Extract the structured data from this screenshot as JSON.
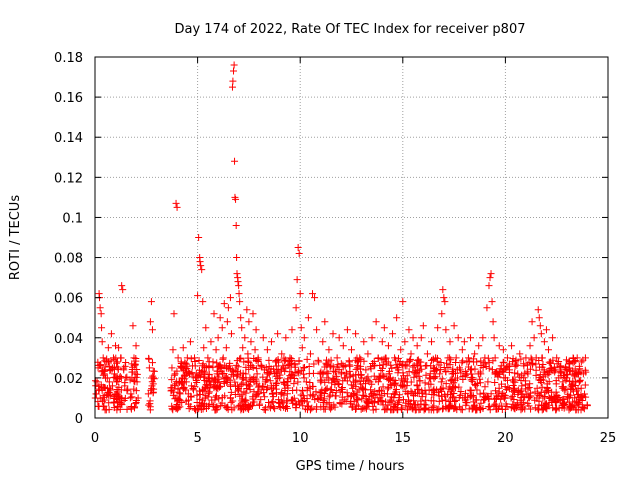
{
  "chart_data": {
    "type": "scatter",
    "title": "Day 174 of 2022, Rate Of TEC Index for receiver p807",
    "xlabel": "GPS time / hours",
    "ylabel": "ROTI / TECUs",
    "xlim": [
      0,
      25
    ],
    "ylim": [
      0,
      0.18
    ],
    "x_ticks": [
      "0",
      "5",
      "10",
      "15",
      "20",
      "25"
    ],
    "y_ticks": [
      "0",
      "0.02",
      "0.04",
      "0.06",
      "0.08",
      "0.1",
      "0.12",
      "0.14",
      "0.16",
      "0.18"
    ],
    "grid": true,
    "marker": "plus",
    "series_color": "#ff0000",
    "series": [
      {
        "points": [
          [
            0.05,
            0.012
          ],
          [
            0.1,
            0.018
          ],
          [
            0.15,
            0.025
          ],
          [
            0.2,
            0.062
          ],
          [
            0.22,
            0.06
          ],
          [
            0.25,
            0.055
          ],
          [
            0.3,
            0.052
          ],
          [
            0.32,
            0.045
          ],
          [
            0.35,
            0.038
          ],
          [
            0.4,
            0.03
          ],
          [
            0.45,
            0.022
          ],
          [
            0.5,
            0.015
          ],
          [
            0.55,
            0.028
          ],
          [
            0.6,
            0.02
          ],
          [
            0.65,
            0.035
          ],
          [
            0.7,
            0.018
          ],
          [
            0.75,
            0.024
          ],
          [
            0.8,
            0.042
          ],
          [
            0.85,
            0.016
          ],
          [
            0.9,
            0.03
          ],
          [
            0.95,
            0.022
          ],
          [
            1.0,
            0.036
          ],
          [
            1.05,
            0.018
          ],
          [
            1.1,
            0.028
          ],
          [
            1.15,
            0.035
          ],
          [
            1.2,
            0.02
          ],
          [
            1.25,
            0.03
          ],
          [
            1.3,
            0.066
          ],
          [
            1.35,
            0.064
          ],
          [
            1.4,
            0.024
          ],
          [
            1.45,
            0.016
          ],
          [
            1.5,
            0.02
          ],
          [
            1.75,
            0.012
          ],
          [
            1.8,
            0.02
          ],
          [
            1.85,
            0.046
          ],
          [
            1.9,
            0.03
          ],
          [
            1.95,
            0.022
          ],
          [
            2.0,
            0.036
          ],
          [
            2.05,
            0.018
          ],
          [
            2.1,
            0.01
          ],
          [
            2.6,
            0.012
          ],
          [
            2.65,
            0.025
          ],
          [
            2.7,
            0.048
          ],
          [
            2.75,
            0.058
          ],
          [
            2.8,
            0.044
          ],
          [
            2.85,
            0.02
          ],
          [
            3.7,
            0.015
          ],
          [
            3.75,
            0.025
          ],
          [
            3.8,
            0.034
          ],
          [
            3.85,
            0.052
          ],
          [
            3.9,
            0.022
          ],
          [
            3.95,
            0.107
          ],
          [
            4.0,
            0.105
          ],
          [
            4.05,
            0.03
          ],
          [
            4.1,
            0.018
          ],
          [
            4.15,
            0.012
          ],
          [
            4.2,
            0.028
          ],
          [
            4.25,
            0.02
          ],
          [
            4.3,
            0.035
          ],
          [
            4.35,
            0.015
          ],
          [
            4.4,
            0.025
          ],
          [
            4.45,
            0.018
          ],
          [
            4.5,
            0.03
          ],
          [
            4.55,
            0.012
          ],
          [
            4.6,
            0.022
          ],
          [
            4.65,
            0.038
          ],
          [
            4.7,
            0.016
          ],
          [
            4.75,
            0.026
          ],
          [
            4.8,
            0.014
          ],
          [
            4.85,
            0.03
          ],
          [
            4.9,
            0.02
          ],
          [
            5.0,
            0.061
          ],
          [
            5.05,
            0.09
          ],
          [
            5.1,
            0.08
          ],
          [
            5.12,
            0.078
          ],
          [
            5.15,
            0.076
          ],
          [
            5.2,
            0.074
          ],
          [
            5.25,
            0.058
          ],
          [
            5.3,
            0.035
          ],
          [
            5.35,
            0.022
          ],
          [
            5.4,
            0.045
          ],
          [
            5.45,
            0.018
          ],
          [
            5.5,
            0.03
          ],
          [
            5.55,
            0.026
          ],
          [
            5.6,
            0.015
          ],
          [
            5.65,
            0.038
          ],
          [
            5.7,
            0.02
          ],
          [
            5.75,
            0.028
          ],
          [
            5.8,
            0.052
          ],
          [
            5.85,
            0.016
          ],
          [
            5.9,
            0.034
          ],
          [
            5.95,
            0.022
          ],
          [
            6.0,
            0.04
          ],
          [
            6.05,
            0.018
          ],
          [
            6.1,
            0.05
          ],
          [
            6.15,
            0.025
          ],
          [
            6.2,
            0.045
          ],
          [
            6.25,
            0.03
          ],
          [
            6.3,
            0.057
          ],
          [
            6.35,
            0.02
          ],
          [
            6.4,
            0.035
          ],
          [
            6.45,
            0.048
          ],
          [
            6.5,
            0.055
          ],
          [
            6.55,
            0.026
          ],
          [
            6.6,
            0.06
          ],
          [
            6.65,
            0.042
          ],
          [
            6.7,
            0.165
          ],
          [
            6.72,
            0.168
          ],
          [
            6.75,
            0.173
          ],
          [
            6.78,
            0.176
          ],
          [
            6.8,
            0.128
          ],
          [
            6.82,
            0.11
          ],
          [
            6.85,
            0.109
          ],
          [
            6.88,
            0.096
          ],
          [
            6.9,
            0.08
          ],
          [
            6.92,
            0.072
          ],
          [
            6.95,
            0.07
          ],
          [
            6.97,
            0.068
          ],
          [
            7.0,
            0.066
          ],
          [
            7.02,
            0.062
          ],
          [
            7.05,
            0.058
          ],
          [
            7.1,
            0.05
          ],
          [
            7.15,
            0.045
          ],
          [
            7.2,
            0.035
          ],
          [
            7.25,
            0.028
          ],
          [
            7.3,
            0.04
          ],
          [
            7.35,
            0.022
          ],
          [
            7.4,
            0.054
          ],
          [
            7.45,
            0.032
          ],
          [
            7.5,
            0.048
          ],
          [
            7.55,
            0.02
          ],
          [
            7.6,
            0.038
          ],
          [
            7.65,
            0.026
          ],
          [
            7.7,
            0.052
          ],
          [
            7.75,
            0.018
          ],
          [
            7.8,
            0.034
          ],
          [
            7.85,
            0.044
          ],
          [
            7.9,
            0.022
          ],
          [
            7.95,
            0.03
          ],
          [
            8.0,
            0.016
          ],
          [
            8.1,
            0.026
          ],
          [
            8.2,
            0.04
          ],
          [
            8.3,
            0.018
          ],
          [
            8.4,
            0.034
          ],
          [
            8.5,
            0.022
          ],
          [
            8.6,
            0.038
          ],
          [
            8.7,
            0.015
          ],
          [
            8.8,
            0.028
          ],
          [
            8.9,
            0.042
          ],
          [
            9.0,
            0.02
          ],
          [
            9.1,
            0.032
          ],
          [
            9.2,
            0.025
          ],
          [
            9.3,
            0.04
          ],
          [
            9.4,
            0.018
          ],
          [
            9.5,
            0.03
          ],
          [
            9.6,
            0.044
          ],
          [
            9.8,
            0.055
          ],
          [
            9.85,
            0.069
          ],
          [
            9.9,
            0.085
          ],
          [
            9.95,
            0.082
          ],
          [
            10.0,
            0.062
          ],
          [
            10.05,
            0.045
          ],
          [
            10.1,
            0.035
          ],
          [
            10.15,
            0.025
          ],
          [
            10.2,
            0.04
          ],
          [
            10.3,
            0.018
          ],
          [
            10.4,
            0.05
          ],
          [
            10.5,
            0.032
          ],
          [
            10.6,
            0.062
          ],
          [
            10.7,
            0.06
          ],
          [
            10.8,
            0.044
          ],
          [
            10.9,
            0.028
          ],
          [
            11.0,
            0.022
          ],
          [
            11.1,
            0.038
          ],
          [
            11.2,
            0.048
          ],
          [
            11.3,
            0.02
          ],
          [
            11.4,
            0.034
          ],
          [
            11.5,
            0.026
          ],
          [
            11.6,
            0.042
          ],
          [
            11.7,
            0.018
          ],
          [
            11.8,
            0.03
          ],
          [
            11.9,
            0.04
          ],
          [
            12.0,
            0.022
          ],
          [
            12.1,
            0.036
          ],
          [
            12.2,
            0.02
          ],
          [
            12.3,
            0.044
          ],
          [
            12.4,
            0.028
          ],
          [
            12.5,
            0.034
          ],
          [
            12.6,
            0.018
          ],
          [
            12.7,
            0.042
          ],
          [
            12.8,
            0.025
          ],
          [
            12.9,
            0.03
          ],
          [
            13.0,
            0.02
          ],
          [
            13.1,
            0.038
          ],
          [
            13.2,
            0.024
          ],
          [
            13.3,
            0.032
          ],
          [
            13.4,
            0.018
          ],
          [
            13.5,
            0.04
          ],
          [
            13.6,
            0.026
          ],
          [
            13.7,
            0.048
          ],
          [
            13.8,
            0.03
          ],
          [
            13.9,
            0.02
          ],
          [
            14.0,
            0.038
          ],
          [
            14.1,
            0.045
          ],
          [
            14.2,
            0.028
          ],
          [
            14.3,
            0.036
          ],
          [
            14.4,
            0.02
          ],
          [
            14.5,
            0.042
          ],
          [
            14.6,
            0.03
          ],
          [
            14.7,
            0.05
          ],
          [
            14.8,
            0.024
          ],
          [
            14.9,
            0.034
          ],
          [
            15.0,
            0.058
          ],
          [
            15.1,
            0.038
          ],
          [
            15.2,
            0.026
          ],
          [
            15.3,
            0.044
          ],
          [
            15.4,
            0.032
          ],
          [
            15.5,
            0.04
          ],
          [
            15.6,
            0.022
          ],
          [
            15.7,
            0.036
          ],
          [
            15.8,
            0.028
          ],
          [
            15.9,
            0.04
          ],
          [
            16.0,
            0.046
          ],
          [
            16.1,
            0.026
          ],
          [
            16.2,
            0.032
          ],
          [
            16.3,
            0.02
          ],
          [
            16.4,
            0.038
          ],
          [
            16.5,
            0.025
          ],
          [
            16.6,
            0.03
          ],
          [
            16.7,
            0.045
          ],
          [
            16.9,
            0.052
          ],
          [
            16.95,
            0.064
          ],
          [
            17.0,
            0.06
          ],
          [
            17.05,
            0.058
          ],
          [
            17.1,
            0.044
          ],
          [
            17.2,
            0.03
          ],
          [
            17.3,
            0.038
          ],
          [
            17.4,
            0.022
          ],
          [
            17.5,
            0.046
          ],
          [
            17.6,
            0.03
          ],
          [
            17.7,
            0.04
          ],
          [
            17.8,
            0.024
          ],
          [
            17.9,
            0.034
          ],
          [
            18.0,
            0.038
          ],
          [
            18.1,
            0.022
          ],
          [
            18.2,
            0.03
          ],
          [
            18.3,
            0.04
          ],
          [
            18.4,
            0.02
          ],
          [
            18.5,
            0.032
          ],
          [
            18.6,
            0.028
          ],
          [
            18.7,
            0.036
          ],
          [
            18.8,
            0.022
          ],
          [
            18.9,
            0.04
          ],
          [
            19.0,
            0.03
          ],
          [
            19.1,
            0.055
          ],
          [
            19.2,
            0.066
          ],
          [
            19.25,
            0.07
          ],
          [
            19.3,
            0.072
          ],
          [
            19.35,
            0.058
          ],
          [
            19.4,
            0.048
          ],
          [
            19.45,
            0.04
          ],
          [
            19.5,
            0.03
          ],
          [
            19.6,
            0.022
          ],
          [
            19.7,
            0.036
          ],
          [
            19.8,
            0.026
          ],
          [
            19.9,
            0.034
          ],
          [
            20.0,
            0.02
          ],
          [
            20.1,
            0.03
          ],
          [
            20.2,
            0.024
          ],
          [
            20.3,
            0.036
          ],
          [
            20.4,
            0.018
          ],
          [
            20.5,
            0.028
          ],
          [
            20.6,
            0.022
          ],
          [
            20.7,
            0.032
          ],
          [
            20.8,
            0.016
          ],
          [
            20.9,
            0.026
          ],
          [
            21.0,
            0.03
          ],
          [
            21.1,
            0.022
          ],
          [
            21.2,
            0.036
          ],
          [
            21.3,
            0.048
          ],
          [
            21.4,
            0.04
          ],
          [
            21.5,
            0.03
          ],
          [
            21.6,
            0.054
          ],
          [
            21.65,
            0.05
          ],
          [
            21.7,
            0.046
          ],
          [
            21.75,
            0.042
          ],
          [
            21.8,
            0.03
          ],
          [
            21.9,
            0.038
          ],
          [
            22.0,
            0.044
          ],
          [
            22.1,
            0.034
          ],
          [
            22.2,
            0.028
          ],
          [
            22.3,
            0.04
          ],
          [
            22.4,
            0.024
          ],
          [
            22.5,
            0.03
          ],
          [
            22.6,
            0.02
          ],
          [
            22.7,
            0.026
          ],
          [
            22.8,
            0.018
          ],
          [
            22.9,
            0.024
          ],
          [
            23.0,
            0.02
          ],
          [
            23.1,
            0.028
          ],
          [
            23.2,
            0.016
          ],
          [
            23.3,
            0.03
          ],
          [
            23.4,
            0.022
          ],
          [
            23.5,
            0.03
          ],
          [
            23.6,
            0.018
          ],
          [
            23.7,
            0.028
          ],
          [
            23.8,
            0.022
          ],
          [
            23.9,
            0.03
          ]
        ]
      }
    ],
    "band": {
      "x_ranges": [
        [
          0.0,
          1.6
        ],
        [
          1.7,
          2.1
        ],
        [
          2.6,
          2.9
        ],
        [
          3.7,
          24.0
        ]
      ],
      "y_min": 0.004,
      "y_max": 0.03
    }
  }
}
